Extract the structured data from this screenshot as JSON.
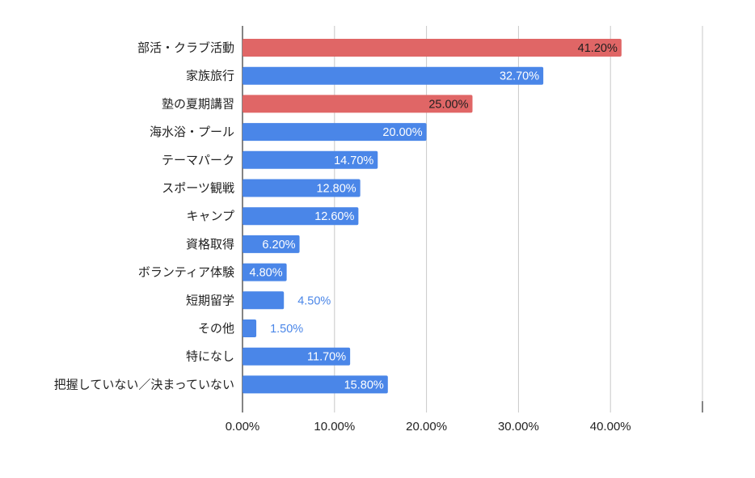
{
  "chart_data": {
    "type": "bar",
    "orientation": "horizontal",
    "categories": [
      "部活・クラブ活動",
      "家族旅行",
      "塾の夏期講習",
      "海水浴・プール",
      "テーマパーク",
      "スポーツ観戦",
      "キャンプ",
      "資格取得",
      "ボランティア体験",
      "短期留学",
      "その他",
      "特になし",
      "把握していない／決まっていない"
    ],
    "values": [
      41.2,
      32.7,
      25.0,
      20.0,
      14.7,
      12.8,
      12.6,
      6.2,
      4.8,
      4.5,
      1.5,
      11.7,
      15.8
    ],
    "value_labels": [
      "41.20%",
      "32.70%",
      "25.00%",
      "20.00%",
      "14.70%",
      "12.80%",
      "12.60%",
      "6.20%",
      "4.80%",
      "4.50%",
      "1.50%",
      "11.70%",
      "15.80%"
    ],
    "bar_colors": [
      "#e06666",
      "#4a86e8",
      "#e06666",
      "#4a86e8",
      "#4a86e8",
      "#4a86e8",
      "#4a86e8",
      "#4a86e8",
      "#4a86e8",
      "#4a86e8",
      "#4a86e8",
      "#4a86e8",
      "#4a86e8"
    ],
    "label_colors": [
      "#1f1f1f",
      "#ffffff",
      "#1f1f1f",
      "#ffffff",
      "#ffffff",
      "#ffffff",
      "#ffffff",
      "#ffffff",
      "#ffffff",
      "#4a86e8",
      "#4a86e8",
      "#ffffff",
      "#ffffff"
    ],
    "label_inside": [
      true,
      true,
      true,
      true,
      true,
      true,
      true,
      true,
      true,
      false,
      false,
      true,
      true
    ],
    "x_ticks": [
      "0.00%",
      "10.00%",
      "20.00%",
      "30.00%",
      "40.00%"
    ],
    "x_tick_values": [
      0,
      10,
      20,
      30,
      40
    ],
    "xlim": [
      0,
      50
    ],
    "grid": true,
    "title": "",
    "xlabel": "",
    "ylabel": ""
  }
}
